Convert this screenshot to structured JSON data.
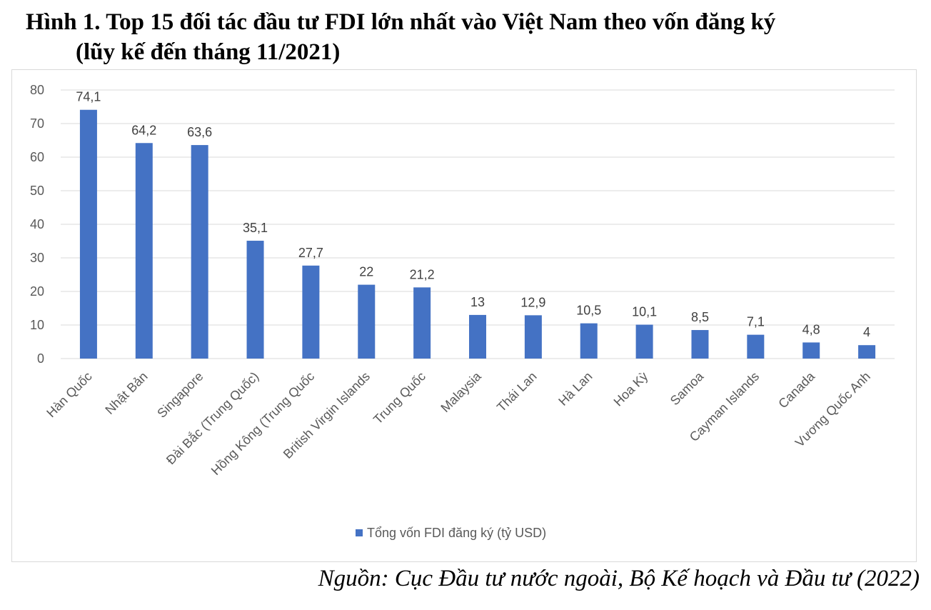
{
  "title": {
    "line1": "Hình 1. Top 15 đối tác đầu tư FDI lớn nhất vào Việt Nam theo vốn đăng ký",
    "line2": "(lũy kế đến tháng 11/2021)"
  },
  "source": "Nguồn: Cục Đầu tư nước ngoài, Bộ Kế hoạch và Đầu tư (2022)",
  "colors": {
    "bar": "#4472C4",
    "grid": "#d9d9d9"
  },
  "chart_data": {
    "type": "bar",
    "categories": [
      "Hàn Quốc",
      "Nhật Bản",
      "Singapore",
      "Đài Bắc (Trung Quốc)",
      "Hồng Kông (Trung Quốc",
      "British Virgin Islands",
      "Trung Quốc",
      "Malaysia",
      "Thái Lan",
      "Hà Lan",
      "Hoa Kỳ",
      "Samoa",
      "Cayman Islands",
      "Canada",
      "Vương Quốc Anh"
    ],
    "series": [
      {
        "name": "Tổng vốn FDI đăng ký (tỷ USD)",
        "values": [
          74.1,
          64.2,
          63.6,
          35.1,
          27.7,
          22,
          21.2,
          13,
          12.9,
          10.5,
          10.1,
          8.5,
          7.1,
          4.8,
          4
        ]
      }
    ],
    "data_labels": [
      "74,1",
      "64,2",
      "63,6",
      "35,1",
      "27,7",
      "22",
      "21,2",
      "13",
      "12,9",
      "10,5",
      "10,1",
      "8,5",
      "7,1",
      "4,8",
      "4"
    ],
    "yticks": [
      "0",
      "10",
      "20",
      "30",
      "40",
      "50",
      "60",
      "70",
      "80"
    ],
    "ylim": [
      0,
      80
    ],
    "grid": true,
    "legend_position": "bottom"
  }
}
